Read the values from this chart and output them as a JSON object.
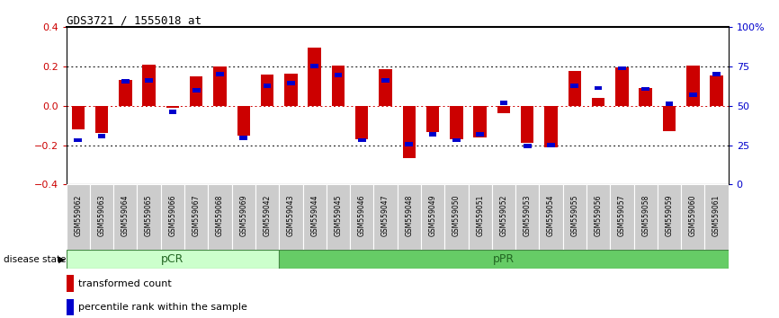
{
  "title": "GDS3721 / 1555018_at",
  "samples": [
    "GSM559062",
    "GSM559063",
    "GSM559064",
    "GSM559065",
    "GSM559066",
    "GSM559067",
    "GSM559068",
    "GSM559069",
    "GSM559042",
    "GSM559043",
    "GSM559044",
    "GSM559045",
    "GSM559046",
    "GSM559047",
    "GSM559048",
    "GSM559049",
    "GSM559050",
    "GSM559051",
    "GSM559052",
    "GSM559053",
    "GSM559054",
    "GSM559055",
    "GSM559056",
    "GSM559057",
    "GSM559058",
    "GSM559059",
    "GSM559060",
    "GSM559061"
  ],
  "red_bars": [
    -0.12,
    -0.14,
    0.13,
    0.21,
    -0.01,
    0.15,
    0.2,
    -0.15,
    0.16,
    0.165,
    0.295,
    0.205,
    -0.17,
    0.185,
    -0.265,
    -0.135,
    -0.17,
    -0.16,
    -0.04,
    -0.19,
    -0.21,
    0.175,
    0.04,
    0.195,
    0.09,
    -0.13,
    0.205,
    0.155
  ],
  "blue_vals": [
    -0.175,
    -0.155,
    0.125,
    0.13,
    -0.03,
    0.08,
    0.16,
    -0.165,
    0.1,
    0.115,
    0.2,
    0.155,
    -0.175,
    0.13,
    -0.195,
    -0.145,
    -0.175,
    -0.145,
    0.015,
    -0.205,
    -0.2,
    0.1,
    0.09,
    0.19,
    0.085,
    0.01,
    0.055,
    0.16
  ],
  "pCR_count": 9,
  "pPR_count": 19,
  "ylim_left": [
    -0.4,
    0.4
  ],
  "ylim_right": [
    0,
    100
  ],
  "yticks_left": [
    -0.4,
    -0.2,
    0.0,
    0.2,
    0.4
  ],
  "yticks_right": [
    0,
    25,
    50,
    75,
    100
  ],
  "ytick_labels_right": [
    "0",
    "25",
    "50",
    "75",
    "100%"
  ],
  "red_color": "#cc0000",
  "blue_color": "#0000cc",
  "zero_line_color": "#cc0000",
  "bg_color": "#ffffff",
  "pCR_color": "#ccffcc",
  "pPR_color": "#66cc66",
  "label_bg_color": "#cccccc",
  "border_color": "#888888",
  "legend_red": "transformed count",
  "legend_blue": "percentile rank within the sample",
  "disease_state_label": "disease state",
  "pCR_label": "pCR",
  "pPR_label": "pPR"
}
